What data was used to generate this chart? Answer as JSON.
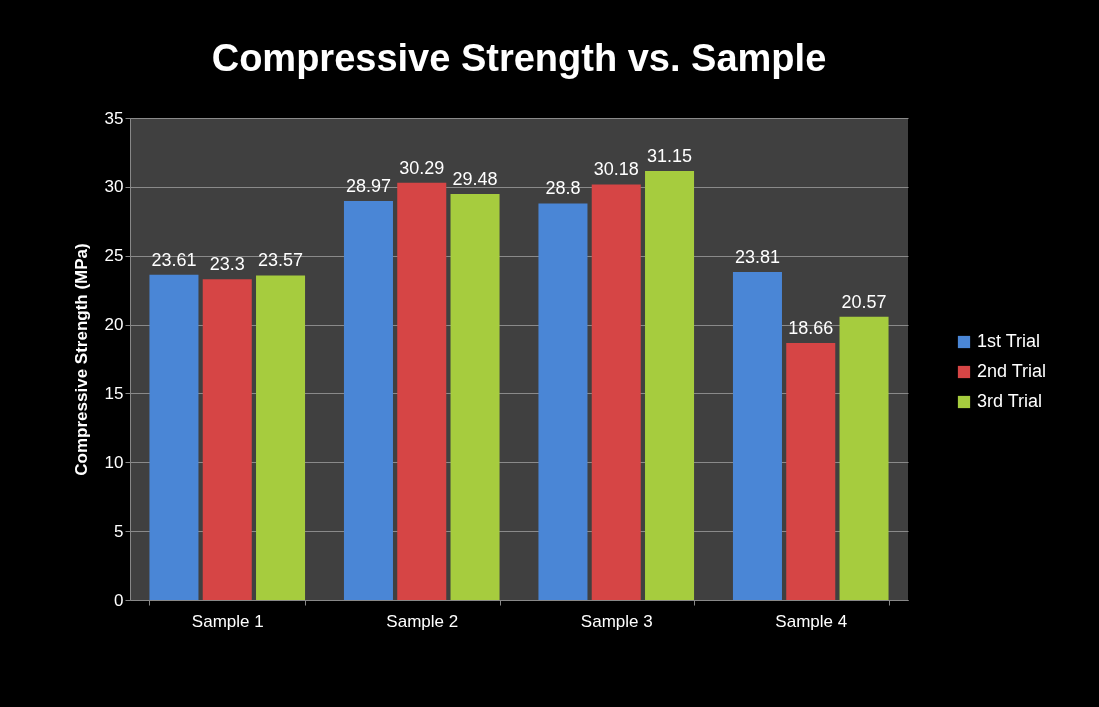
{
  "chart_data": {
    "type": "bar",
    "title": "Compressive Strength vs. Sample",
    "ylabel": "Compressive Strength (MPa)",
    "categories": [
      "Sample 1",
      "Sample 2",
      "Sample 3",
      "Sample 4"
    ],
    "series": [
      {
        "name": "1st Trial",
        "color": "#4a86d6",
        "values": [
          23.61,
          28.97,
          28.8,
          23.81
        ]
      },
      {
        "name": "2nd Trial",
        "color": "#d64545",
        "values": [
          23.3,
          30.29,
          30.18,
          18.66
        ]
      },
      {
        "name": "3rd Trial",
        "color": "#a6cc3e",
        "values": [
          23.57,
          29.48,
          31.15,
          20.57
        ]
      }
    ],
    "ylim": [
      0,
      35
    ],
    "yticks": [
      0,
      5,
      10,
      15,
      20,
      25,
      30,
      35
    ],
    "grid": "y",
    "legend": "right",
    "data_labels": true
  }
}
